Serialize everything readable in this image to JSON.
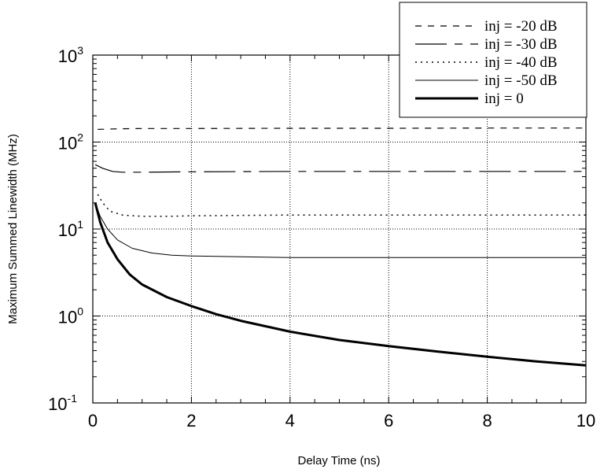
{
  "chart_data": {
    "type": "line",
    "title": "",
    "xlabel": "Delay Time (ns)",
    "ylabel": "Maximum Summed Linewidth (MHz)",
    "xlim": [
      0,
      10
    ],
    "ylim": [
      0.1,
      1000
    ],
    "yscale": "log",
    "grid": true,
    "legend_position": "top-right",
    "x_ticks": [
      "0",
      "2",
      "4",
      "6",
      "8",
      "10"
    ],
    "y_ticks": [
      {
        "base": "10",
        "exp": "-1"
      },
      {
        "base": "10",
        "exp": "0"
      },
      {
        "base": "10",
        "exp": "1"
      },
      {
        "base": "10",
        "exp": "2"
      },
      {
        "base": "10",
        "exp": "3"
      }
    ],
    "series": [
      {
        "name": "inj = -20 dB",
        "style": "dashed",
        "x": [
          0.1,
          0.5,
          1,
          2,
          4,
          6,
          8,
          10
        ],
        "y": [
          140,
          142,
          143,
          143,
          144,
          144,
          145,
          145
        ]
      },
      {
        "name": "inj = -30 dB",
        "style": "longdash",
        "x": [
          0.05,
          0.2,
          0.4,
          0.6,
          1,
          2,
          4,
          6,
          8,
          10
        ],
        "y": [
          55,
          50,
          46,
          45,
          45,
          45.5,
          46,
          46,
          46,
          46
        ]
      },
      {
        "name": "inj = -40 dB",
        "style": "dotted",
        "x": [
          0.1,
          0.2,
          0.35,
          0.6,
          1,
          1.5,
          2,
          4,
          6,
          8,
          10
        ],
        "y": [
          25,
          20,
          16,
          14.5,
          14,
          14,
          14.2,
          14.5,
          14.5,
          14.5,
          14.5
        ]
      },
      {
        "name": "inj = -50 dB",
        "style": "thin",
        "x": [
          0.05,
          0.15,
          0.3,
          0.5,
          0.8,
          1.2,
          1.6,
          2,
          3,
          4,
          6,
          8,
          10
        ],
        "y": [
          20,
          14,
          10,
          7.5,
          6,
          5.3,
          5.0,
          4.9,
          4.8,
          4.7,
          4.7,
          4.7,
          4.7
        ]
      },
      {
        "name": "inj = 0",
        "style": "thick",
        "x": [
          0.05,
          0.15,
          0.3,
          0.5,
          0.75,
          1,
          1.5,
          2,
          2.5,
          3,
          4,
          5,
          6,
          7,
          8,
          9,
          10
        ],
        "y": [
          20,
          12,
          7,
          4.5,
          3.0,
          2.3,
          1.65,
          1.3,
          1.05,
          0.88,
          0.66,
          0.53,
          0.45,
          0.39,
          0.34,
          0.3,
          0.27
        ]
      }
    ]
  }
}
